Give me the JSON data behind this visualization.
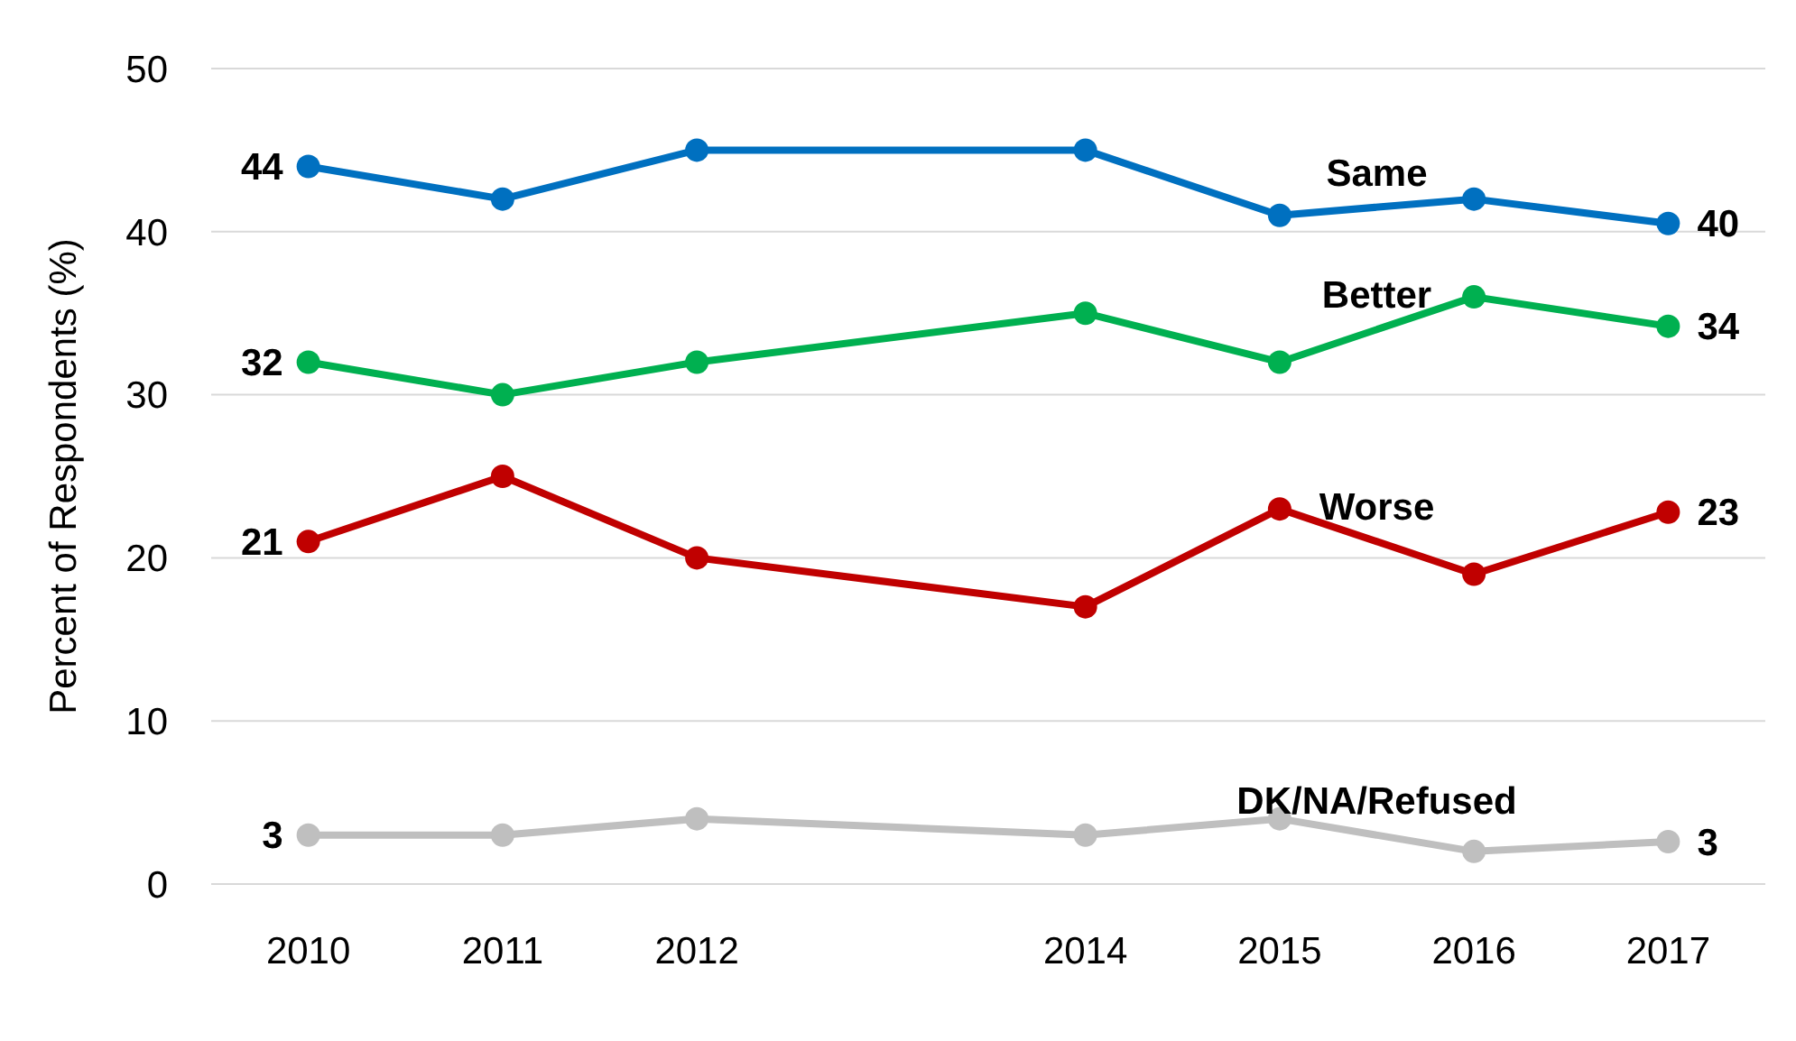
{
  "chart_data": {
    "type": "line",
    "ylabel": "Percent of Respondents (%)",
    "x": [
      2010,
      2011,
      2012,
      2014,
      2015,
      2016,
      2017
    ],
    "xlim": [
      2009.5,
      2017.5
    ],
    "xticks": [
      2010,
      2011,
      2012,
      2014,
      2015,
      2016,
      2017
    ],
    "ylim": [
      0,
      50
    ],
    "yticks": [
      0,
      10,
      20,
      30,
      40,
      50
    ],
    "grid": "y",
    "marker": "circle",
    "line_style": "solid",
    "series": [
      {
        "name": "Same",
        "color": "#0070c0",
        "values": [
          44,
          42,
          45,
          45,
          41,
          42,
          40.5
        ],
        "value_labels": [
          "44",
          null,
          null,
          null,
          null,
          null,
          "40"
        ]
      },
      {
        "name": "Better",
        "color": "#00b050",
        "values": [
          32,
          30,
          32,
          35,
          32,
          36,
          34.2
        ],
        "value_labels": [
          "32",
          null,
          null,
          null,
          null,
          null,
          "34"
        ]
      },
      {
        "name": "Worse",
        "color": "#c00000",
        "values": [
          21,
          25,
          20,
          17,
          23,
          19,
          22.8
        ],
        "value_labels": [
          "21",
          null,
          null,
          null,
          null,
          null,
          "23"
        ]
      },
      {
        "name": "DK/NA/Refused",
        "color": "#bfbfbf",
        "values": [
          3,
          3,
          4,
          3,
          4,
          2,
          2.6
        ],
        "value_labels": [
          "3",
          null,
          null,
          null,
          null,
          null,
          "3"
        ]
      }
    ]
  }
}
